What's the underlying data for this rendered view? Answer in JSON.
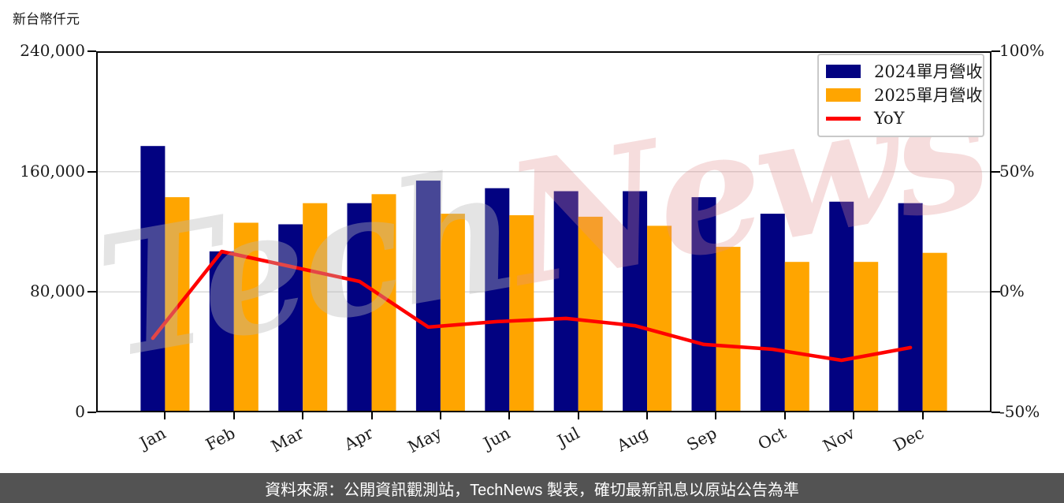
{
  "page": {
    "unit_label": "新台幣仟元",
    "footer": "資料來源：公開資訊觀測站，TechNews 製表，確切最新訊息以原站公告為準",
    "watermark": {
      "part1": "Tech",
      "part2": "News"
    }
  },
  "colors": {
    "bar_2024": "#020281",
    "bar_2025": "#ffa500",
    "yoy_line": "#ff0000",
    "gridline": "#d8d8d8",
    "plot_border": "#000000",
    "footer_bg": "#535353",
    "footer_text": "#ffffff",
    "legend_border": "#c9c9c9"
  },
  "chart_data": {
    "type": "bar",
    "ylabel": "新台幣仟元",
    "xlabel": "",
    "categories": [
      "Jan",
      "Feb",
      "Mar",
      "Apr",
      "May",
      "Jun",
      "Jul",
      "Aug",
      "Sep",
      "Oct",
      "Nov",
      "Dec"
    ],
    "series": [
      {
        "name": "2024單月營收",
        "type": "bar",
        "axis": "left",
        "color": "#020281",
        "values": [
          177000,
          107000,
          125000,
          139000,
          154000,
          149000,
          147000,
          147000,
          143000,
          132000,
          140000,
          139000
        ]
      },
      {
        "name": "2025單月營收",
        "type": "bar",
        "axis": "left",
        "color": "#ffa500",
        "values": [
          143000,
          126000,
          139000,
          145000,
          132000,
          131000,
          130000,
          124000,
          110000,
          100000,
          100000,
          106000
        ]
      },
      {
        "name": "YoY",
        "type": "line",
        "axis": "right",
        "color": "#ff0000",
        "values": [
          -19.2,
          16.8,
          10.6,
          4.4,
          -14.6,
          -12.3,
          -11.0,
          -14.0,
          -21.8,
          -23.8,
          -28.4,
          -23.1
        ]
      }
    ],
    "left_axis": {
      "ticks": [
        "240,000",
        "160,000",
        "80,000",
        "0"
      ],
      "max": 240000,
      "min": 0
    },
    "right_axis": {
      "ticks": [
        "100%",
        "50%",
        "0%",
        "-50%"
      ],
      "max": 100,
      "min": -50
    },
    "grid_values": [
      160000,
      80000
    ],
    "grid": "horizontal",
    "legend_position": "top-right"
  }
}
